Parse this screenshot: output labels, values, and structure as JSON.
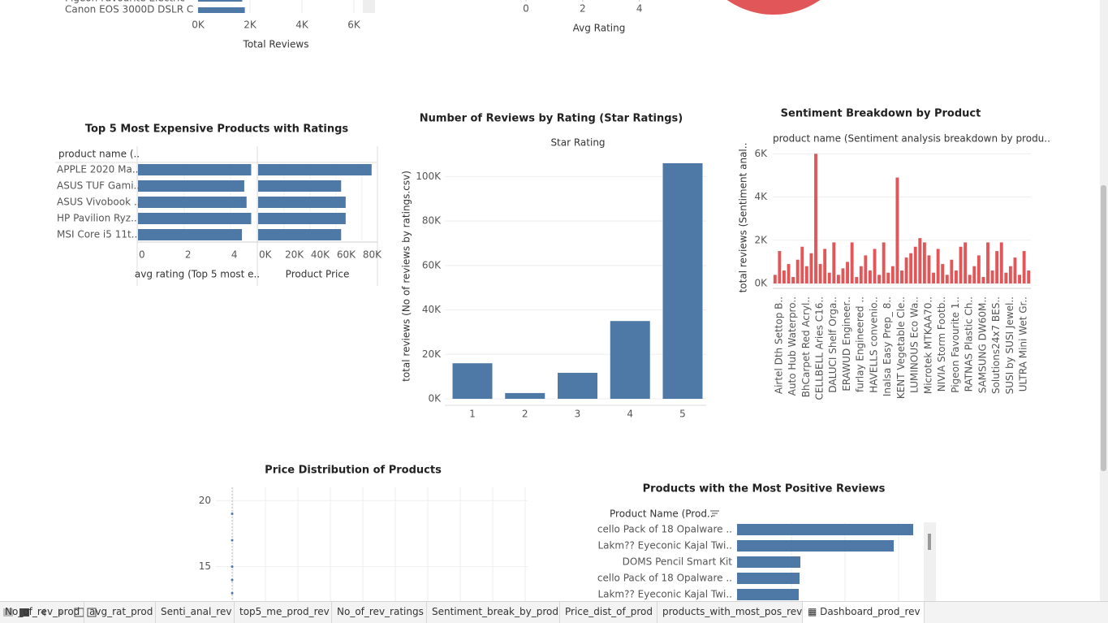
{
  "top_reviews_partial": {
    "type": "bar",
    "categories": [
      "Pigeon Favourite Electric",
      "Canon EOS 3000D DSLR C"
    ],
    "values": [
      1700,
      1800
    ],
    "color": "#4e79a7",
    "xlim": [
      0,
      7000
    ],
    "xticks": [
      {
        "value": 0,
        "label": "0K"
      },
      {
        "value": 2000,
        "label": "2K"
      },
      {
        "value": 4000,
        "label": "4K"
      },
      {
        "value": 6000,
        "label": "6K"
      }
    ],
    "x_label": "Total Reviews"
  },
  "top_rating_partial": {
    "type": "bar",
    "xlim": [
      0,
      5.5
    ],
    "xticks": [
      0,
      2,
      4
    ],
    "x_label": "Avg Rating"
  },
  "pie_partial": {
    "type": "pie",
    "color": "#e15759"
  },
  "expensive": {
    "type": "bar",
    "title": "Top 5 Most Expensive Products with Ratings",
    "row_header": "product name (..",
    "categories": [
      "APPLE 2020 Ma..",
      "ASUS TUF Gami..",
      "ASUS Vivobook ..",
      "HP Pavilion Ryz..",
      "MSI Core i5 11t.."
    ],
    "color": "#4e79a7",
    "rating": {
      "values": [
        4.9,
        4.6,
        4.7,
        4.9,
        4.5
      ],
      "xlim": [
        0,
        5.2
      ],
      "xticks": [
        0,
        2,
        4
      ],
      "x_label": "avg rating (Top 5 most e.."
    },
    "price": {
      "values": [
        87500,
        64000,
        67500,
        67500,
        64000
      ],
      "xlim": [
        0,
        92000
      ],
      "xticks": [
        {
          "value": 0,
          "label": "0K"
        },
        {
          "value": 20000,
          "label": "20K"
        },
        {
          "value": 40000,
          "label": "40K"
        },
        {
          "value": 60000,
          "label": "60K"
        },
        {
          "value": 80000,
          "label": "80K"
        }
      ],
      "x_label": "Product Price"
    }
  },
  "reviews_by_rating": {
    "type": "bar",
    "title": "Number of Reviews by Rating (Star Ratings)",
    "subtitle": "Star Rating",
    "y_label": "total reviews (No of reviews by ratings.csv)",
    "categories": [
      "1",
      "2",
      "3",
      "4",
      "5"
    ],
    "values": [
      16000,
      2600,
      11700,
      35000,
      106000
    ],
    "color": "#4e79a7",
    "ylim": [
      0,
      110000
    ],
    "yticks": [
      {
        "value": 0,
        "label": "0K"
      },
      {
        "value": 20000,
        "label": "20K"
      },
      {
        "value": 40000,
        "label": "40K"
      },
      {
        "value": 60000,
        "label": "60K"
      },
      {
        "value": 80000,
        "label": "80K"
      },
      {
        "value": 100000,
        "label": "100K"
      }
    ],
    "grid": true
  },
  "sentiment": {
    "type": "bar",
    "title": "Sentiment Breakdown by Product",
    "subtitle": "product name (Sentiment analysis breakdown by produ..",
    "y_label": "total reviews (Sentiment anal..",
    "color": "#e15759",
    "categories": [
      "Airtel Dth Settop B..",
      null,
      null,
      "Auto Hub Waterpro..",
      null,
      null,
      "BhCarpet Red Acryl..",
      null,
      null,
      "CELLBELL Aries C16..",
      null,
      null,
      "DALUCI Shelf Orga..",
      null,
      null,
      "ERAWUD Engineer..",
      null,
      null,
      "furlay Engineered ..",
      null,
      null,
      "HAVELLS convenio..",
      null,
      null,
      "Inalsa Easy Prep_ 8..",
      null,
      null,
      "KENT Vegetable Cle..",
      null,
      null,
      "LUMINOUS Eco Wa..",
      null,
      null,
      "Microtek MTKAA70..",
      null,
      null,
      "NIVIA Storm Footb..",
      null,
      null,
      "Pigeon Favourite 1..",
      null,
      null,
      "RATNAS Plastic Ch..",
      null,
      null,
      "SAMSUNG DW60M..",
      null,
      null,
      "Solutions24x7 BES..",
      null,
      null,
      "SUSI by SUSI Jewel..",
      null,
      null,
      "ULTRA Mini Wet Gr..",
      null,
      null
    ],
    "values": [
      400,
      1500,
      600,
      900,
      300,
      1100,
      1700,
      800,
      1400,
      6000,
      900,
      1600,
      500,
      1900,
      400,
      700,
      1000,
      1900,
      300,
      800,
      1300,
      600,
      1600,
      400,
      1900,
      500,
      800,
      4900,
      600,
      1200,
      1400,
      1700,
      2100,
      1900,
      1300,
      500,
      1600,
      900,
      400,
      1100,
      600,
      1700,
      1900,
      400,
      800,
      1300,
      300,
      1900,
      600,
      1500,
      1900,
      500,
      800,
      1200,
      400,
      1500,
      600
    ],
    "ylim": [
      0,
      6200
    ],
    "yticks": [
      {
        "value": 0,
        "label": "0K"
      },
      {
        "value": 2000,
        "label": "2K"
      },
      {
        "value": 4000,
        "label": "4K"
      },
      {
        "value": 6000,
        "label": "6K"
      }
    ],
    "grid": true
  },
  "price_distribution": {
    "type": "scatter",
    "title": "Price Distribution of Products",
    "values": [
      19,
      17,
      15,
      14,
      13
    ],
    "color": "#4e79a7",
    "ylim": [
      12.4,
      21
    ],
    "yticks": [
      15,
      20
    ],
    "grid": true
  },
  "positive_reviews": {
    "type": "bar",
    "title": "Products with the Most Positive Reviews",
    "row_header": "Product Name (Prod..",
    "categories": [
      "cello Pack of 18 Opalware ..",
      "Lakm?? Eyeconic Kajal Twi..",
      "DOMS Pencil Smart Kit",
      "cello Pack of 18 Opalware ..",
      "Lakm?? Eyeconic Kajal Twi.."
    ],
    "values": [
      217,
      193,
      78,
      77,
      76
    ],
    "color": "#4e79a7",
    "xlim": [
      0,
      232
    ]
  },
  "tabs": {
    "items": [
      "No_of_rev_prod",
      "avg_rat_prod",
      "Senti_anal_rev",
      "top5_me_prod_rev",
      "No_of_rev_ratings",
      "Sentiment_break_by_prod",
      "Price_dist_of_prod",
      "products_with_most_pos_rev",
      "Dashboard_prod_rev"
    ],
    "active": 8
  }
}
